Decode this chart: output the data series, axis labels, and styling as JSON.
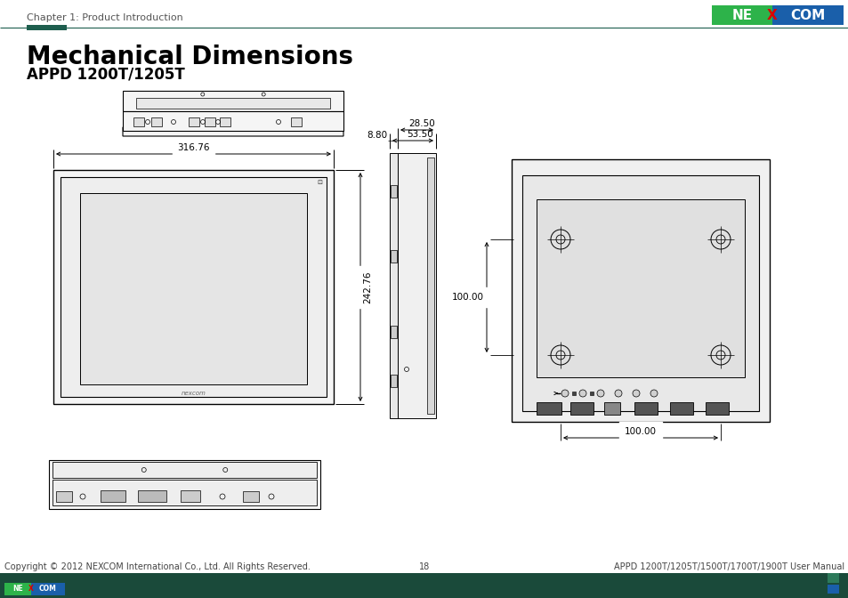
{
  "title": "Mechanical Dimensions",
  "subtitle": "APPD 1200T/1205T",
  "chapter": "Chapter 1: Product Introduction",
  "page_num": "18",
  "footer_left": "Copyright © 2012 NEXCOM International Co., Ltd. All Rights Reserved.",
  "footer_right": "APPD 1200T/1205T/1500T/1700T/1900T User Manual",
  "dim_width": "316.76",
  "dim_height": "242.76",
  "dim_top1": "53.50",
  "dim_top2": "28.50",
  "dim_left": "8.80",
  "dim_back_h": "100.00",
  "dim_back_w": "100.00",
  "bg_color": "#ffffff",
  "line_color": "#000000",
  "header_bar_color": "#1e5e4e",
  "header_accent_color": "#1e5e4e",
  "footer_bar_color": "#1a4a3a",
  "nexcom_green": "#2db34a",
  "nexcom_blue": "#1a5faa",
  "title_fontsize": 20,
  "subtitle_fontsize": 12,
  "chapter_fontsize": 8,
  "footer_fontsize": 7,
  "dim_fontsize": 7.5
}
